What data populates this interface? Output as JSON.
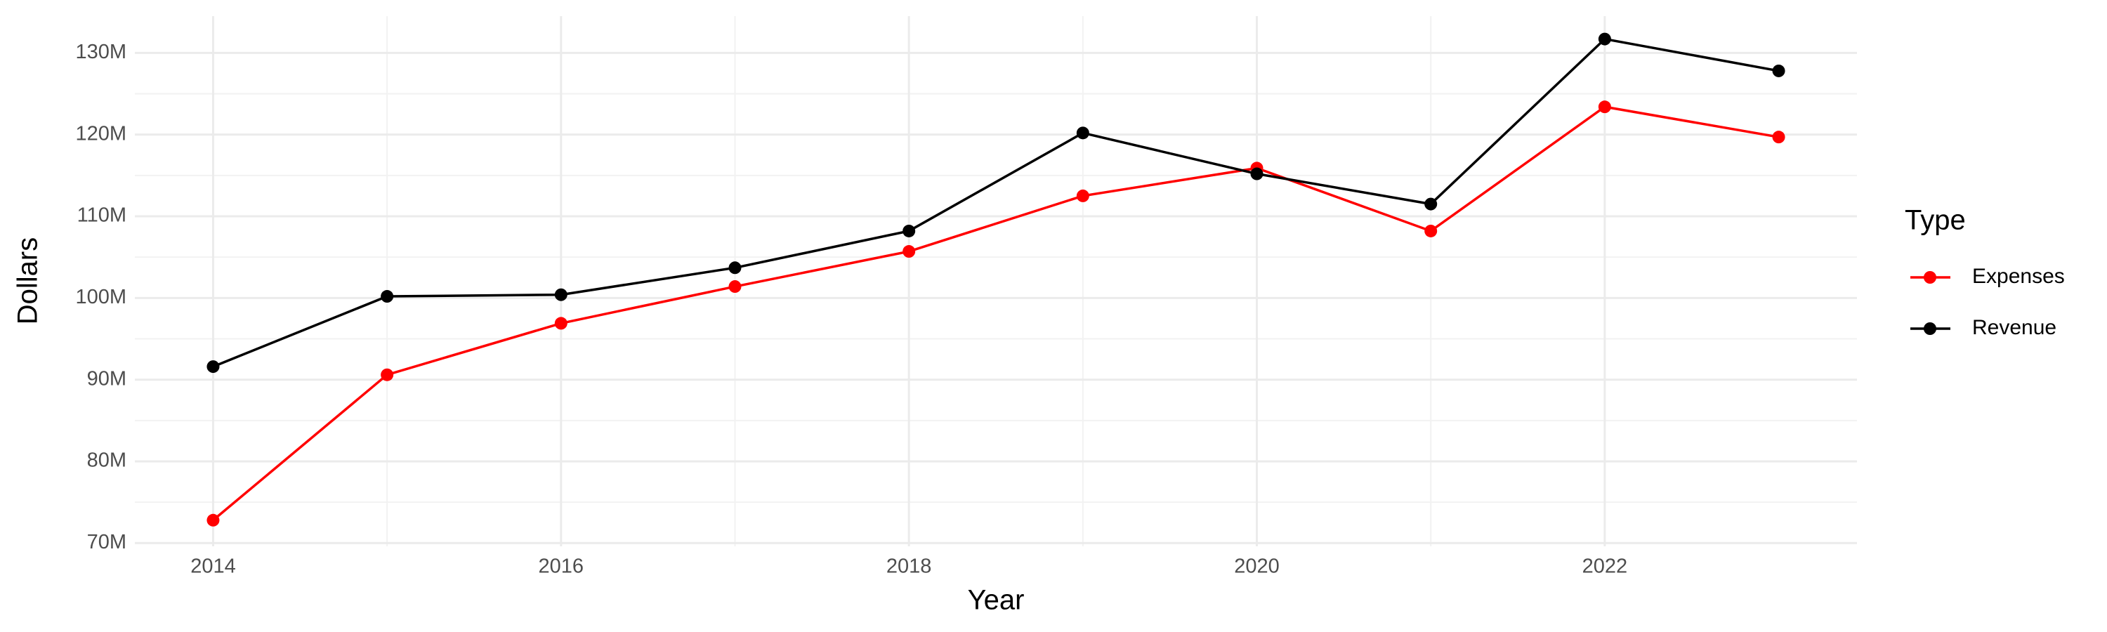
{
  "chart_data": {
    "type": "line",
    "x_label": "Year",
    "y_label": "Dollars",
    "x": [
      2014,
      2015,
      2016,
      2017,
      2018,
      2019,
      2020,
      2021,
      2022,
      2023
    ],
    "series": [
      {
        "name": "Expenses",
        "color": "#ff0000",
        "values": [
          72800000,
          90600000,
          96900000,
          101400000,
          105700000,
          112500000,
          115900000,
          108200000,
          123400000,
          119700000
        ]
      },
      {
        "name": "Revenue",
        "color": "#000000",
        "values": [
          91600000,
          100200000,
          100400000,
          103700000,
          108200000,
          120200000,
          115200000,
          111500000,
          131700000,
          127800000
        ]
      }
    ],
    "legend_title": "Type",
    "legend": "right",
    "xlim": [
      2013.55,
      2023.45
    ],
    "xticks": [
      2014,
      2016,
      2018,
      2020,
      2022
    ],
    "ylim": [
      69600000,
      134500000
    ],
    "yticks": [
      {
        "value": 70000000,
        "label": "70M"
      },
      {
        "value": 80000000,
        "label": "80M"
      },
      {
        "value": 90000000,
        "label": "90M"
      },
      {
        "value": 100000000,
        "label": "100M"
      },
      {
        "value": 110000000,
        "label": "110M"
      },
      {
        "value": 120000000,
        "label": "120M"
      },
      {
        "value": 130000000,
        "label": "130M"
      }
    ],
    "grid": true
  }
}
